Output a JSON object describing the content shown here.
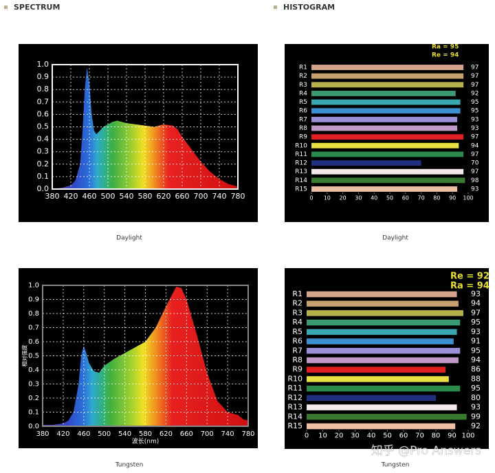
{
  "headers": [
    "SPECTRUM",
    "HISTOGRAM"
  ],
  "watermark": "知乎 @Pro Answers",
  "chart_data": [
    {
      "type": "area",
      "caption": "Daylight",
      "x": [
        380,
        400,
        420,
        430,
        440,
        445,
        450,
        455,
        460,
        465,
        470,
        475,
        480,
        490,
        500,
        510,
        520,
        540,
        560,
        580,
        600,
        620,
        640,
        650,
        660,
        680,
        700,
        720,
        740,
        760,
        780
      ],
      "values": [
        0,
        0.01,
        0.03,
        0.07,
        0.2,
        0.45,
        0.8,
        0.98,
        0.85,
        0.6,
        0.47,
        0.44,
        0.46,
        0.5,
        0.52,
        0.54,
        0.55,
        0.53,
        0.52,
        0.51,
        0.5,
        0.52,
        0.51,
        0.48,
        0.42,
        0.32,
        0.22,
        0.14,
        0.08,
        0.04,
        0.02
      ],
      "xlim": [
        380,
        780
      ],
      "xticks": [
        380,
        420,
        460,
        500,
        540,
        580,
        620,
        660,
        700,
        740,
        780
      ],
      "ylim": [
        0,
        1
      ],
      "yticks": [
        {
          "value": 0,
          "label": "0.0"
        },
        0.1,
        0.2,
        0.3,
        0.4,
        0.5,
        0.6,
        0.7,
        0.8,
        0.9,
        {
          "value": 1,
          "label": "1.0"
        }
      ],
      "grid": true
    },
    {
      "type": "bar",
      "orientation": "horizontal",
      "caption": "Daylight",
      "annotations": [
        "Ra = 95",
        "Re = 94"
      ],
      "categories": [
        "R1",
        "R2",
        "R3",
        "R4",
        "R5",
        "R6",
        "R7",
        "R8",
        "R9",
        "R10",
        "R11",
        "R12",
        "R13",
        "R14",
        "R15"
      ],
      "values": [
        97,
        97,
        97,
        92,
        95,
        95,
        93,
        93,
        97,
        94,
        97,
        70,
        97,
        98,
        93
      ],
      "colors": [
        "#d4a58a",
        "#c8a070",
        "#b8b048",
        "#3a9a72",
        "#3aa8b0",
        "#3a90d0",
        "#9a90d8",
        "#c098c8",
        "#e02020",
        "#e8e040",
        "#2a8a4a",
        "#203080",
        "#f4eaea",
        "#3a7a30",
        "#ecc0a0"
      ],
      "xlim": [
        0,
        100
      ],
      "xticks": [
        0,
        10,
        20,
        30,
        40,
        50,
        60,
        70,
        80,
        90,
        100
      ]
    },
    {
      "type": "area",
      "caption": "Tungsten",
      "xlabel": "波长(nm)",
      "ylabel": "相对强度",
      "x": [
        380,
        400,
        420,
        430,
        440,
        450,
        455,
        460,
        465,
        470,
        480,
        490,
        500,
        520,
        540,
        560,
        580,
        600,
        620,
        640,
        650,
        660,
        680,
        700,
        720,
        740,
        760,
        770,
        780
      ],
      "values": [
        0.01,
        0.01,
        0.02,
        0.04,
        0.1,
        0.3,
        0.5,
        0.57,
        0.52,
        0.45,
        0.39,
        0.38,
        0.43,
        0.48,
        0.52,
        0.56,
        0.6,
        0.7,
        0.85,
        0.99,
        0.98,
        0.9,
        0.65,
        0.38,
        0.18,
        0.1,
        0.08,
        0.05,
        0.04
      ],
      "xlim": [
        380,
        780
      ],
      "xticks": [
        380,
        420,
        460,
        500,
        540,
        580,
        620,
        660,
        700,
        740,
        780
      ],
      "ylim": [
        0,
        1
      ],
      "yticks": [
        {
          "value": 0,
          "label": "0.0"
        },
        0.1,
        0.2,
        0.3,
        0.4,
        0.5,
        0.6,
        0.7,
        0.8,
        0.9,
        {
          "value": 1,
          "label": "1.0"
        }
      ],
      "grid": true
    },
    {
      "type": "bar",
      "orientation": "horizontal",
      "caption": "Tungsten",
      "annotations": [
        "Re = 92",
        "Ra = 94"
      ],
      "categories": [
        "R1",
        "R2",
        "R3",
        "R4",
        "R5",
        "R6",
        "R7",
        "R8",
        "R9",
        "R10",
        "R11",
        "R12",
        "R13",
        "R14",
        "R15"
      ],
      "values": [
        93,
        94,
        97,
        95,
        93,
        91,
        95,
        94,
        86,
        88,
        95,
        80,
        93,
        99,
        92
      ],
      "colors": [
        "#d4a58a",
        "#c8a070",
        "#b8b048",
        "#3a9a72",
        "#3aa8b0",
        "#3a90d0",
        "#9a90d8",
        "#c098c8",
        "#e02020",
        "#e8e040",
        "#2a8a4a",
        "#203080",
        "#f4eaea",
        "#3a7a30",
        "#ecc0a0"
      ],
      "xlim": [
        0,
        100
      ],
      "xticks": [
        0,
        10,
        20,
        30,
        40,
        50,
        60,
        70,
        80,
        90,
        100
      ]
    }
  ]
}
